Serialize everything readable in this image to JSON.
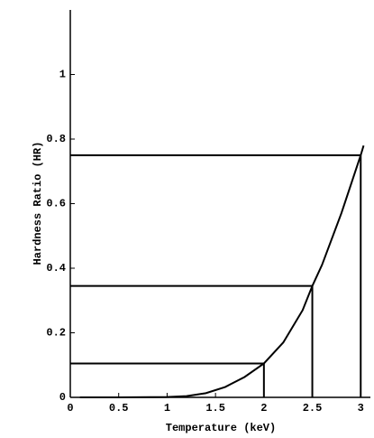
{
  "chart_data": {
    "type": "line",
    "xlabel": "Temperature (keV)",
    "ylabel": "Hardness Ratio (HR)",
    "xlim": [
      0,
      3.1
    ],
    "ylim": [
      0,
      1.2
    ],
    "xticks": [
      0,
      0.5,
      1,
      1.5,
      2,
      2.5,
      3
    ],
    "yticks": [
      0,
      0.2,
      0.4,
      0.6,
      0.8,
      1
    ],
    "color": "#000000",
    "series": [
      {
        "x": [
          0.1,
          0.5,
          1.0,
          1.2,
          1.4,
          1.6,
          1.8,
          2.0,
          2.2,
          2.4,
          2.5,
          2.6,
          2.8,
          3.0,
          3.03
        ],
        "values": [
          0,
          0,
          0.001,
          0.004,
          0.013,
          0.032,
          0.063,
          0.105,
          0.17,
          0.27,
          0.345,
          0.41,
          0.57,
          0.75,
          0.78
        ]
      }
    ],
    "guides": [
      {
        "x": 2,
        "y": 0.105
      },
      {
        "x": 2.5,
        "y": 0.345
      },
      {
        "x": 3,
        "y": 0.75
      }
    ]
  }
}
